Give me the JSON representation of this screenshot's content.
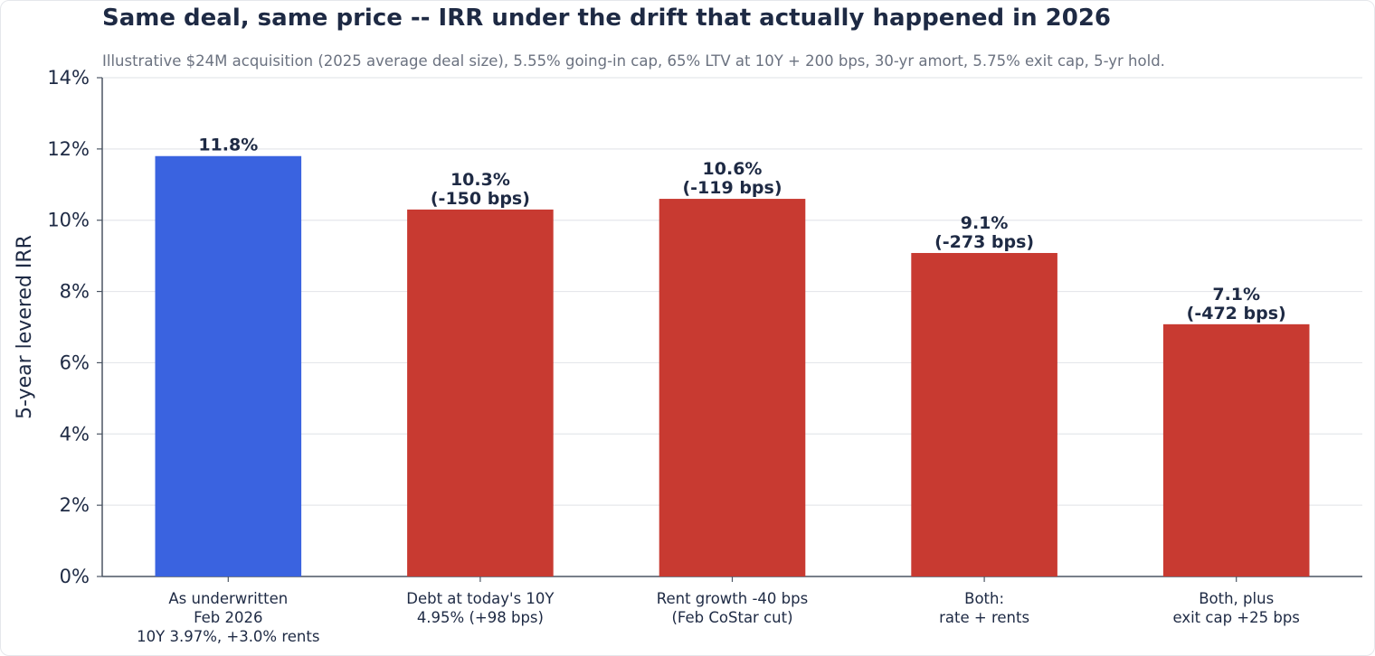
{
  "title": "Same deal, same price -- IRR under the drift that actually happened in 2026",
  "subtitle": "Illustrative $24M acquisition (2025 average deal size), 5.55% going-in cap, 65% LTV at 10Y + 200 bps, 30-yr amort, 5.75% exit cap, 5-yr hold.",
  "colors": {
    "baseline": "#3a63e0",
    "scenario": "#c83a31",
    "text": "#1e2a44",
    "grid": "#e5e7eb",
    "axis": "#4b5563"
  },
  "chart_data": {
    "type": "bar",
    "title": "Same deal, same price -- IRR under the drift that actually happened in 2026",
    "xlabel": "",
    "ylabel": "5-year levered IRR",
    "ylim": [
      0,
      14
    ],
    "yticks": [
      "0%",
      "2%",
      "4%",
      "6%",
      "8%",
      "10%",
      "12%",
      "14%"
    ],
    "grid": "horizontal",
    "categories": [
      [
        "As underwritten",
        "Feb 2026",
        "10Y 3.97%, +3.0% rents"
      ],
      [
        "Debt at today's 10Y",
        "4.95% (+98 bps)"
      ],
      [
        "Rent growth -40 bps",
        "(Feb CoStar cut)"
      ],
      [
        "Both:",
        "rate + rents"
      ],
      [
        "Both, plus",
        "exit cap +25 bps"
      ]
    ],
    "values": [
      11.8,
      10.3,
      10.6,
      9.08,
      7.08
    ],
    "value_labels": [
      [
        "11.8%"
      ],
      [
        "10.3%",
        "(-150 bps)"
      ],
      [
        "10.6%",
        "(-119 bps)"
      ],
      [
        "9.1%",
        "(-273 bps)"
      ],
      [
        "7.1%",
        "(-472 bps)"
      ]
    ],
    "bar_colors": [
      "baseline",
      "scenario",
      "scenario",
      "scenario",
      "scenario"
    ]
  }
}
